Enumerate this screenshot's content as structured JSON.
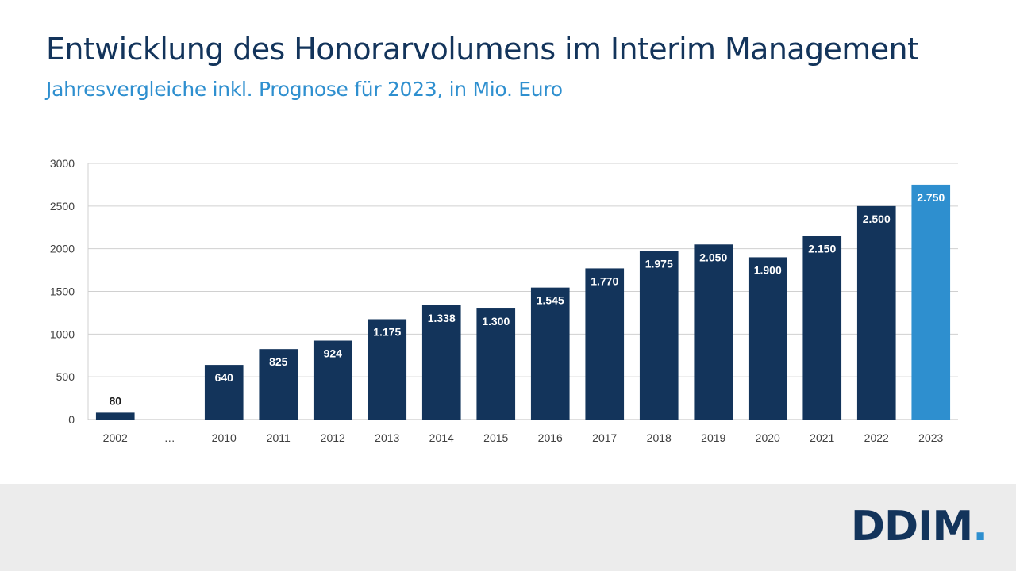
{
  "header": {
    "title": "Entwicklung des Honorarvolumens im Interim Management",
    "subtitle": "Jahresvergleiche inkl. Prognose für 2023, in Mio. Euro"
  },
  "logo": {
    "text": "DDIM",
    "dot": "."
  },
  "colors": {
    "bar": "#13345b",
    "highlight": "#2e8fcf",
    "grid": "#d0d0d0",
    "axis_text": "#404040"
  },
  "chart_data": {
    "type": "bar",
    "categories": [
      "2002",
      "…",
      "2010",
      "2011",
      "2012",
      "2013",
      "2014",
      "2015",
      "2016",
      "2017",
      "2018",
      "2019",
      "2020",
      "2021",
      "2022",
      "2023"
    ],
    "values": [
      80,
      null,
      640,
      825,
      924,
      1175,
      1338,
      1300,
      1545,
      1770,
      1975,
      2050,
      1900,
      2150,
      2500,
      2750
    ],
    "labels": [
      "80",
      "",
      "640",
      "825",
      "924",
      "1.175",
      "1.338",
      "1.300",
      "1.545",
      "1.770",
      "1.975",
      "2.050",
      "1.900",
      "2.150",
      "2.500",
      "2.750"
    ],
    "highlight_category": "2023",
    "ylim": [
      0,
      3000
    ],
    "yticks": [
      0,
      500,
      1000,
      1500,
      2000,
      2500,
      3000
    ],
    "grid": true,
    "legend": "none"
  }
}
